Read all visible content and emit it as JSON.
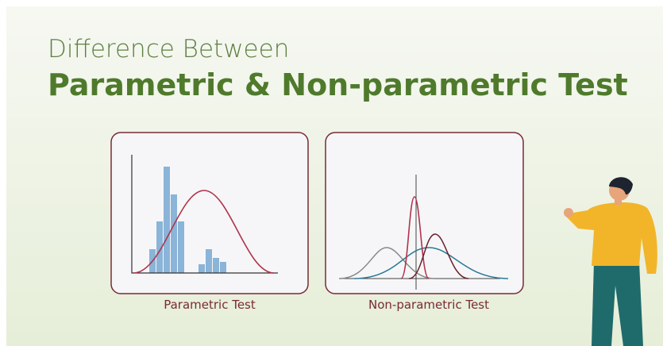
{
  "header": {
    "title": "Difference Between",
    "subtitle": "Parametric & Non-parametric Test"
  },
  "panels": [
    {
      "label": "Parametric Test"
    },
    {
      "label": "Non-parametric Test"
    }
  ]
}
